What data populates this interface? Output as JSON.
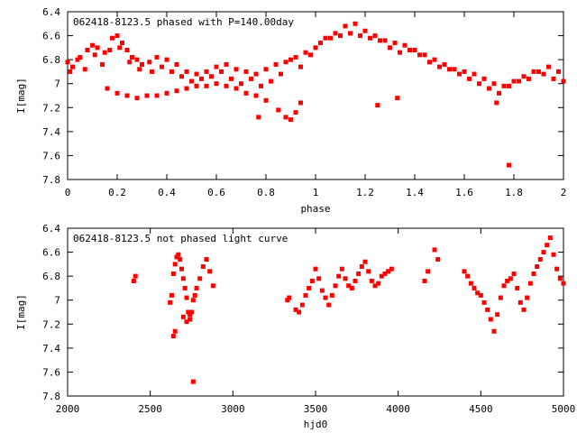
{
  "chart_data": [
    {
      "type": "scatter",
      "title": "062418-8123.5 phased with P=140.00day",
      "xlabel": "phase",
      "ylabel": "I[mag]",
      "xlim": [
        0,
        2
      ],
      "ylim": [
        6.4,
        7.8
      ],
      "y_inverted": true,
      "xticks": [
        "0",
        "0.2",
        "0.4",
        "0.6",
        "0.8",
        "1",
        "1.2",
        "1.4",
        "1.6",
        "1.8",
        "2"
      ],
      "yticks": [
        "6.4",
        "6.6",
        "6.8",
        "7",
        "7.2",
        "7.4",
        "7.6",
        "7.8"
      ],
      "marker_color": "#ff0000",
      "grid": false,
      "series": [
        {
          "x": [
            0.0,
            0.02,
            0.05,
            0.08,
            0.1,
            0.12,
            0.15,
            0.18,
            0.2,
            0.22,
            0.24,
            0.26,
            0.28,
            0.3,
            0.33,
            0.36,
            0.4,
            0.44,
            0.48,
            0.52,
            0.56,
            0.6,
            0.64,
            0.68,
            0.72,
            0.76,
            0.8,
            0.84,
            0.88,
            0.9,
            0.92,
            0.96,
            1.0,
            1.04,
            1.08,
            1.12,
            1.16,
            1.2,
            1.24,
            1.28,
            1.32,
            1.36,
            1.4,
            1.44,
            1.48,
            1.52,
            1.56,
            1.6,
            1.64,
            1.68,
            1.72,
            1.76,
            1.8,
            1.84,
            1.88,
            1.92,
            1.96,
            2.0,
            0.01,
            0.04,
            0.07,
            0.11,
            0.14,
            0.17,
            0.21,
            0.25,
            0.29,
            0.34,
            0.38,
            0.42,
            0.46,
            0.5,
            0.54,
            0.58,
            0.62,
            0.66,
            0.7,
            0.74,
            0.78,
            0.82,
            0.86,
            0.94,
            0.98,
            1.02,
            1.06,
            1.1,
            1.14,
            1.18,
            1.22,
            1.26,
            1.3,
            1.34,
            1.38,
            1.42,
            1.46,
            1.5,
            1.54,
            1.58,
            1.62,
            1.66,
            1.7,
            1.74,
            1.78,
            1.82,
            1.86,
            1.9,
            1.94,
            1.98,
            0.16,
            0.2,
            0.24,
            0.28,
            0.32,
            0.36,
            0.4,
            0.44,
            0.48,
            0.52,
            0.56,
            0.6,
            0.64,
            0.68,
            0.72,
            0.76,
            0.8,
            0.85,
            0.88,
            0.9,
            0.92,
            0.94,
            0.77,
            1.25,
            1.33,
            1.73,
            1.78
          ],
          "y": [
            6.82,
            6.86,
            6.78,
            6.72,
            6.68,
            6.7,
            6.74,
            6.62,
            6.6,
            6.66,
            6.72,
            6.78,
            6.8,
            6.84,
            6.82,
            6.78,
            6.8,
            6.84,
            6.9,
            6.92,
            6.9,
            6.86,
            6.84,
            6.88,
            6.9,
            6.92,
            6.88,
            6.84,
            6.82,
            6.8,
            6.78,
            6.74,
            6.7,
            6.62,
            6.58,
            6.52,
            6.5,
            6.56,
            6.6,
            6.64,
            6.66,
            6.68,
            6.72,
            6.76,
            6.8,
            6.84,
            6.88,
            6.9,
            6.92,
            6.96,
            7.0,
            7.02,
            6.98,
            6.94,
            6.9,
            6.92,
            6.96,
            6.98,
            6.9,
            6.8,
            6.88,
            6.76,
            6.84,
            6.72,
            6.7,
            6.82,
            6.88,
            6.9,
            6.86,
            6.9,
            6.94,
            6.98,
            6.96,
            6.94,
            6.9,
            6.96,
            7.0,
            6.96,
            7.02,
            6.98,
            6.92,
            6.86,
            6.76,
            6.66,
            6.62,
            6.6,
            6.58,
            6.6,
            6.62,
            6.64,
            6.7,
            6.74,
            6.72,
            6.76,
            6.82,
            6.86,
            6.88,
            6.92,
            6.96,
            7.0,
            7.04,
            7.08,
            7.02,
            6.98,
            6.96,
            6.9,
            6.86,
            6.9,
            7.04,
            7.08,
            7.1,
            7.12,
            7.1,
            7.1,
            7.08,
            7.06,
            7.04,
            7.02,
            7.02,
            7.0,
            7.02,
            7.04,
            7.08,
            7.1,
            7.14,
            7.22,
            7.28,
            7.3,
            7.24,
            7.16,
            7.28,
            7.18,
            7.12,
            7.16,
            7.68
          ]
        }
      ]
    },
    {
      "type": "scatter",
      "title": "062418-8123.5 not phased light curve",
      "xlabel": "hjd0",
      "ylabel": "I[mag]",
      "xlim": [
        2000,
        5000
      ],
      "ylim": [
        6.4,
        7.8
      ],
      "y_inverted": true,
      "xticks": [
        "2000",
        "2500",
        "3000",
        "3500",
        "4000",
        "4500",
        "5000"
      ],
      "yticks": [
        "6.4",
        "6.6",
        "6.8",
        "7",
        "7.2",
        "7.4",
        "7.6",
        "7.8"
      ],
      "marker_color": "#ff0000",
      "grid": false,
      "series": [
        {
          "x": [
            2400,
            2410,
            2620,
            2630,
            2640,
            2650,
            2660,
            2670,
            2680,
            2690,
            2700,
            2710,
            2720,
            2730,
            2740,
            2750,
            2760,
            2770,
            2780,
            2800,
            2820,
            2840,
            2860,
            2880,
            2640,
            2650,
            2700,
            2720,
            2740,
            2760,
            3330,
            3340,
            3380,
            3400,
            3420,
            3440,
            3460,
            3480,
            3500,
            3520,
            3540,
            3560,
            3580,
            3600,
            3620,
            3640,
            3660,
            3680,
            3700,
            3720,
            3740,
            3760,
            3780,
            3800,
            3820,
            3840,
            3860,
            3880,
            3900,
            3920,
            3940,
            3960,
            4160,
            4180,
            4220,
            4240,
            4400,
            4420,
            4440,
            4460,
            4480,
            4500,
            4520,
            4540,
            4560,
            4580,
            4600,
            4620,
            4640,
            4660,
            4680,
            4700,
            4720,
            4740,
            4760,
            4780,
            4800,
            4820,
            4840,
            4860,
            4880,
            4900,
            4920,
            4940,
            4960,
            4980,
            5000
          ],
          "y": [
            6.84,
            6.8,
            7.02,
            6.96,
            6.78,
            6.7,
            6.64,
            6.62,
            6.66,
            6.74,
            6.82,
            6.9,
            6.98,
            7.1,
            7.16,
            7.1,
            7.0,
            6.96,
            6.9,
            6.82,
            6.72,
            6.66,
            6.76,
            6.88,
            7.3,
            7.26,
            7.14,
            7.18,
            7.12,
            7.68,
            7.0,
            6.98,
            7.08,
            7.1,
            7.04,
            6.96,
            6.9,
            6.84,
            6.74,
            6.82,
            6.92,
            6.98,
            7.04,
            6.96,
            6.88,
            6.8,
            6.74,
            6.82,
            6.88,
            6.9,
            6.84,
            6.78,
            6.72,
            6.68,
            6.76,
            6.84,
            6.88,
            6.86,
            6.8,
            6.78,
            6.76,
            6.74,
            6.84,
            6.76,
            6.58,
            6.66,
            6.76,
            6.8,
            6.86,
            6.9,
            6.94,
            6.96,
            7.02,
            7.08,
            7.16,
            7.26,
            7.12,
            6.98,
            6.88,
            6.84,
            6.82,
            6.78,
            6.9,
            7.02,
            7.08,
            6.98,
            6.86,
            6.78,
            6.72,
            6.66,
            6.6,
            6.54,
            6.48,
            6.62,
            6.74,
            6.82,
            6.86
          ]
        }
      ]
    }
  ]
}
